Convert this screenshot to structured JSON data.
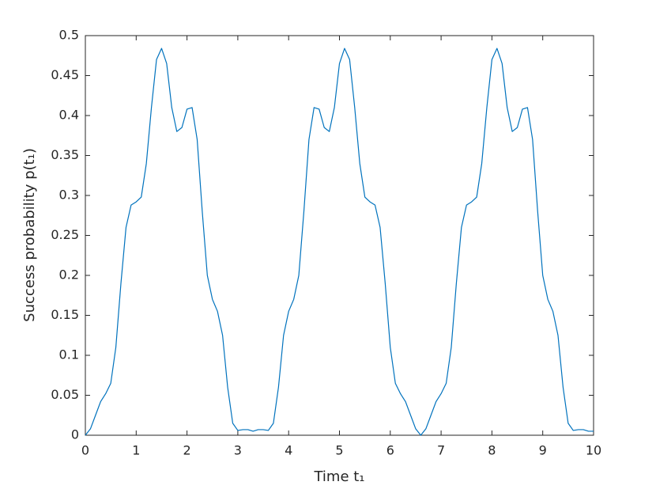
{
  "chart_data": {
    "type": "line",
    "xlabel": "Time t₁",
    "ylabel": "Success probability p(t₁)",
    "x": [
      0,
      0.1,
      0.2,
      0.3,
      0.4,
      0.5,
      0.6,
      0.7,
      0.8,
      0.9,
      1,
      1.1,
      1.2,
      1.3,
      1.4,
      1.5,
      1.6,
      1.7,
      1.8,
      1.9,
      2,
      2.1,
      2.2,
      2.3,
      2.4,
      2.5,
      2.6,
      2.7,
      2.8,
      2.9,
      3,
      3.1,
      3.2,
      3.3,
      3.4,
      3.5,
      3.6,
      3.7,
      3.8,
      3.9,
      4,
      4.1,
      4.2,
      4.3,
      4.4,
      4.5,
      4.6,
      4.7,
      4.8,
      4.9,
      5,
      5.1,
      5.2,
      5.3,
      5.4,
      5.5,
      5.6,
      5.7,
      5.8,
      5.9,
      6,
      6.1,
      6.2,
      6.3,
      6.4,
      6.5,
      6.6,
      6.7,
      6.8,
      6.9,
      7,
      7.1,
      7.2,
      7.3,
      7.4,
      7.5,
      7.6,
      7.7,
      7.8,
      7.9,
      8,
      8.1,
      8.2,
      8.3,
      8.4,
      8.5,
      8.6,
      8.7,
      8.8,
      8.9,
      9,
      9.1,
      9.2,
      9.3,
      9.4,
      9.5,
      9.6,
      9.7,
      9.8,
      9.9,
      10
    ],
    "series": [
      {
        "color": "#0072bd",
        "values": [
          0,
          0.008,
          0.025,
          0.042,
          0.052,
          0.065,
          0.11,
          0.19,
          0.26,
          0.288,
          0.292,
          0.298,
          0.34,
          0.41,
          0.47,
          0.484,
          0.465,
          0.41,
          0.38,
          0.385,
          0.408,
          0.41,
          0.37,
          0.28,
          0.2,
          0.17,
          0.155,
          0.125,
          0.06,
          0.015,
          0.006,
          0.007,
          0.007,
          0.005,
          0.007,
          0.007,
          0.006,
          0.015,
          0.06,
          0.125,
          0.155,
          0.17,
          0.2,
          0.28,
          0.37,
          0.41,
          0.408,
          0.385,
          0.38,
          0.41,
          0.465,
          0.484,
          0.47,
          0.41,
          0.34,
          0.298,
          0.292,
          0.288,
          0.26,
          0.19,
          0.11,
          0.065,
          0.052,
          0.042,
          0.025,
          0.008,
          0,
          0.008,
          0.025,
          0.042,
          0.052,
          0.065,
          0.11,
          0.19,
          0.26,
          0.288,
          0.292,
          0.298,
          0.34,
          0.41,
          0.47,
          0.484,
          0.465,
          0.41,
          0.38,
          0.385,
          0.408,
          0.41,
          0.37,
          0.28,
          0.2,
          0.17,
          0.155,
          0.125,
          0.06,
          0.015,
          0.006,
          0.007,
          0.007,
          0.005,
          0.005
        ]
      }
    ],
    "xlim": [
      0,
      10
    ],
    "xticks": [
      0,
      1,
      2,
      3,
      4,
      5,
      6,
      7,
      8,
      9,
      10
    ],
    "ylim": [
      0,
      0.5
    ],
    "yticks": [
      0,
      0.05,
      0.1,
      0.15,
      0.2,
      0.25,
      0.3,
      0.35,
      0.4,
      0.45,
      0.5
    ]
  }
}
